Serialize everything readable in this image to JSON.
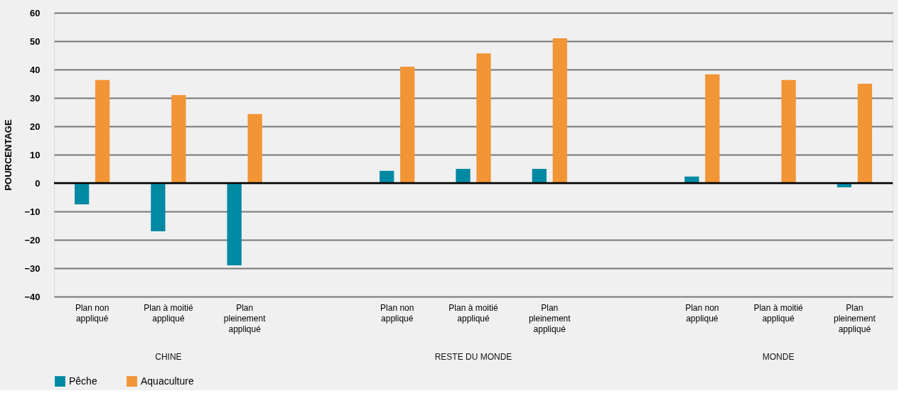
{
  "chart_data": {
    "type": "bar",
    "ylabel": "POURCENTAGE",
    "categories": [
      "Plan non appliqué",
      "Plan à moitié appliqué",
      "Plan pleinement appliqué",
      null,
      "Plan non appliqué",
      "Plan à moitié appliqué",
      "Plan pleinement appliqué",
      null,
      "Plan non appliqué",
      "Plan à moitié appliqué",
      "Plan pleinement appliqué"
    ],
    "series": [
      {
        "name": "Pêche",
        "color": "#0089a3",
        "values": [
          -7.5,
          -17,
          -29,
          null,
          4.3,
          5,
          5,
          null,
          2.3,
          null,
          -1.5
        ]
      },
      {
        "name": "Aquaculture",
        "color": "#f29536",
        "values": [
          36.3,
          31,
          24.3,
          null,
          41,
          45.7,
          51,
          null,
          38.3,
          36.3,
          35
        ]
      }
    ],
    "annotations": [
      "CHINE",
      "RESTE DU MONDE",
      "MONDE"
    ],
    "ylim": [
      -40,
      60
    ],
    "yticks": [
      -40,
      -30,
      -20,
      -10,
      0,
      10,
      20,
      30,
      40,
      50,
      60
    ],
    "ref_lines": [
      {
        "axis": "y",
        "value": 0,
        "color": "#000000"
      }
    ],
    "grid": "y",
    "legend": "bottom"
  }
}
